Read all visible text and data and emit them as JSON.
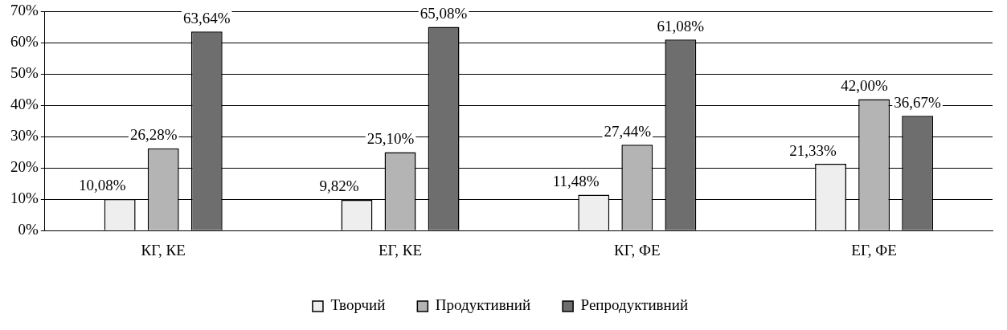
{
  "chart_data": {
    "type": "bar",
    "categories": [
      "КГ, КЕ",
      "ЕГ, КЕ",
      "КГ, ФЕ",
      "ЕГ, ФЕ"
    ],
    "series": [
      {
        "name": "Творчий",
        "color": "#eeeeee",
        "values": [
          10.08,
          9.82,
          11.48,
          21.33
        ],
        "value_labels": [
          "10,08%",
          "9,82%",
          "11,48%",
          "21,33%"
        ]
      },
      {
        "name": "Продуктивний",
        "color": "#b4b4b4",
        "values": [
          26.28,
          25.1,
          27.44,
          42.0
        ],
        "value_labels": [
          "26,28%",
          "25,10%",
          "27,44%",
          "42,00%"
        ]
      },
      {
        "name": "Репродуктивний",
        "color": "#6e6e6e",
        "values": [
          63.64,
          65.08,
          61.08,
          36.67
        ],
        "value_labels": [
          "63,64%",
          "65,08%",
          "61,08%",
          "36,67%"
        ]
      }
    ],
    "ylim": [
      0,
      70
    ],
    "yticks": [
      {
        "value": 0,
        "label": "0%"
      },
      {
        "value": 10,
        "label": "10%"
      },
      {
        "value": 20,
        "label": "20%"
      },
      {
        "value": 30,
        "label": "30%"
      },
      {
        "value": 40,
        "label": "40%"
      },
      {
        "value": 50,
        "label": "50%"
      },
      {
        "value": 60,
        "label": "60%"
      },
      {
        "value": 70,
        "label": "70%"
      }
    ],
    "grid": "y",
    "legend": "bottom"
  }
}
